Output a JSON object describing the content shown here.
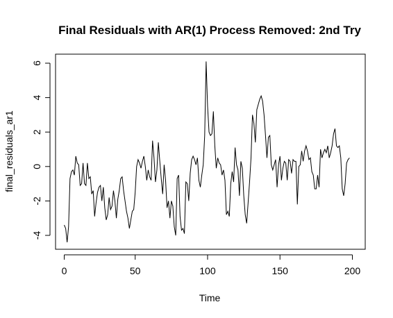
{
  "chart_data": {
    "type": "line",
    "title": "Final Residuals with AR(1) Process Removed: 2nd Try",
    "xlabel": "Time",
    "ylabel": "final_residuals_ar1",
    "xlim": [
      1,
      200
    ],
    "ylim": [
      -4.5,
      6.1
    ],
    "x_ticks": [
      0,
      50,
      100,
      150,
      200
    ],
    "y_ticks": [
      -4,
      -2,
      0,
      2,
      4,
      6
    ],
    "grid": false,
    "line_color": "#000000",
    "series": [
      {
        "values": [
          -3.4,
          -3.6,
          -4.4,
          -3.5,
          -0.7,
          -0.3,
          -0.2,
          -0.5,
          0.6,
          0.2,
          0.1,
          -1.1,
          -1.0,
          0.2,
          -1.0,
          -1.1,
          0.2,
          -0.7,
          -0.6,
          -1.6,
          -1.4,
          -2.9,
          -2.1,
          -1.5,
          -1.2,
          -1.1,
          -2.0,
          -1.2,
          -2.4,
          -3.1,
          -2.8,
          -1.8,
          -2.5,
          -2.3,
          -1.4,
          -2.0,
          -3.0,
          -1.9,
          -1.4,
          -0.7,
          -0.6,
          -1.4,
          -2.0,
          -2.6,
          -3.0,
          -3.6,
          -3.1,
          -2.6,
          -2.5,
          -1.5,
          0.0,
          0.4,
          0.2,
          -0.1,
          0.3,
          0.6,
          0.0,
          -0.8,
          -0.2,
          -0.6,
          -0.8,
          1.5,
          0.5,
          -0.9,
          -0.2,
          1.4,
          0.3,
          -0.7,
          -1.6,
          0.1,
          -0.8,
          -2.4,
          -2.0,
          -3.0,
          -2.0,
          -2.3,
          -3.5,
          -4.0,
          -0.7,
          -0.5,
          -2.9,
          -3.7,
          -3.6,
          -3.9,
          -0.9,
          -1.0,
          -2.0,
          -0.4,
          0.4,
          0.6,
          0.4,
          0.1,
          0.5,
          -0.8,
          -1.2,
          -0.5,
          0.1,
          1.8,
          6.1,
          3.5,
          2.0,
          1.8,
          1.9,
          3.2,
          1.2,
          -0.1,
          0.5,
          0.2,
          0.1,
          -0.5,
          -0.2,
          -0.8,
          -2.8,
          -2.6,
          -2.9,
          -1.0,
          -0.3,
          -0.9,
          1.1,
          0.1,
          -0.2,
          -1.7,
          0.3,
          -0.1,
          -1.7,
          -2.8,
          -3.3,
          -2.1,
          -0.9,
          0.5,
          3.0,
          2.5,
          1.4,
          3.3,
          3.6,
          3.9,
          4.1,
          3.8,
          3.0,
          1.8,
          0.5,
          1.7,
          1.8,
          0.1,
          -0.2,
          0.1,
          0.4,
          -1.2,
          0.1,
          0.6,
          -0.8,
          -0.1,
          0.3,
          0.2,
          -0.8,
          0.4,
          0.3,
          -0.4,
          0.4,
          0.3,
          0.3,
          -2.2,
          0.0,
          0.1,
          0.9,
          0.3,
          0.9,
          1.2,
          0.9,
          0.4,
          0.5,
          -0.3,
          -0.5,
          -1.3,
          -1.3,
          -0.5,
          -1.2,
          1.0,
          0.5,
          0.8,
          1.0,
          0.8,
          1.2,
          0.5,
          0.8,
          1.2,
          1.9,
          2.2,
          1.2,
          1.1,
          1.2,
          0.5,
          -1.3,
          -1.7,
          -1.0,
          0.2,
          0.4,
          0.5
        ]
      }
    ]
  }
}
